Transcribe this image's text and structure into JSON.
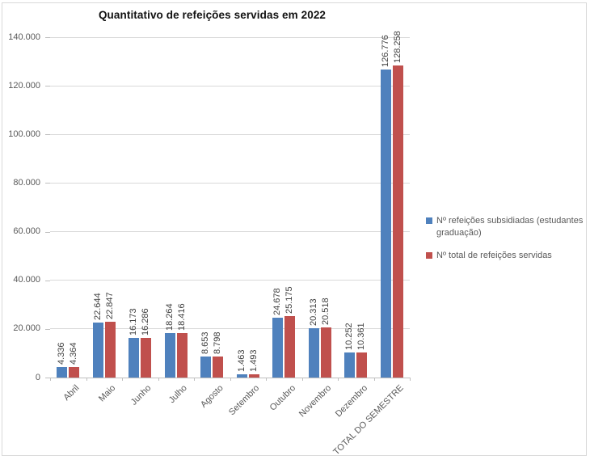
{
  "title": "Quantitativo de refeições servidas em 2022",
  "chart_data": {
    "type": "bar",
    "title": "Quantitativo de refeições servidas em 2022",
    "categories": [
      "Abril",
      "Maio",
      "Junho",
      "Julho",
      "Agosto",
      "Setembro",
      "Outubro",
      "Novembro",
      "Dezembro",
      "TOTAL DO SEMESTRE"
    ],
    "series": [
      {
        "name": "Nº refeições subsidiadas (estudantes graduação)",
        "color": "#4F81BD",
        "values": [
          4336,
          22644,
          16173,
          18264,
          8653,
          1463,
          24678,
          20313,
          10252,
          126776
        ],
        "labels": [
          "4.336",
          "22.644",
          "16.173",
          "18.264",
          "8.653",
          "1.463",
          "24.678",
          "20.313",
          "10.252",
          "126.776"
        ]
      },
      {
        "name": "Nº total de refeições servidas",
        "color": "#C0504D",
        "values": [
          4364,
          22847,
          16286,
          18416,
          8798,
          1493,
          25175,
          20518,
          10361,
          128258
        ],
        "labels": [
          "4.364",
          "22.847",
          "16.286",
          "18.416",
          "8.798",
          "1.493",
          "25.175",
          "20.518",
          "10.361",
          "128.258"
        ]
      }
    ],
    "y_axis": {
      "min": 0,
      "max": 140000,
      "step": 20000,
      "tick_labels": [
        "0",
        "20.000",
        "40.000",
        "60.000",
        "80.000",
        "100.000",
        "120.000",
        "140.000"
      ]
    },
    "grid": true,
    "legend_position": "right",
    "data_label_rotation": 90,
    "x_label_rotation": 45
  },
  "colors": {
    "series1": "#4F81BD",
    "series2": "#C0504D",
    "gridline": "#D9D9D9",
    "axis_line": "#BFBFBF",
    "axis_text": "#595959",
    "data_label_text": "#3F3F3F",
    "chart_border": "#D9D9D9",
    "title_text": "#111111",
    "background": "#FFFFFF"
  }
}
